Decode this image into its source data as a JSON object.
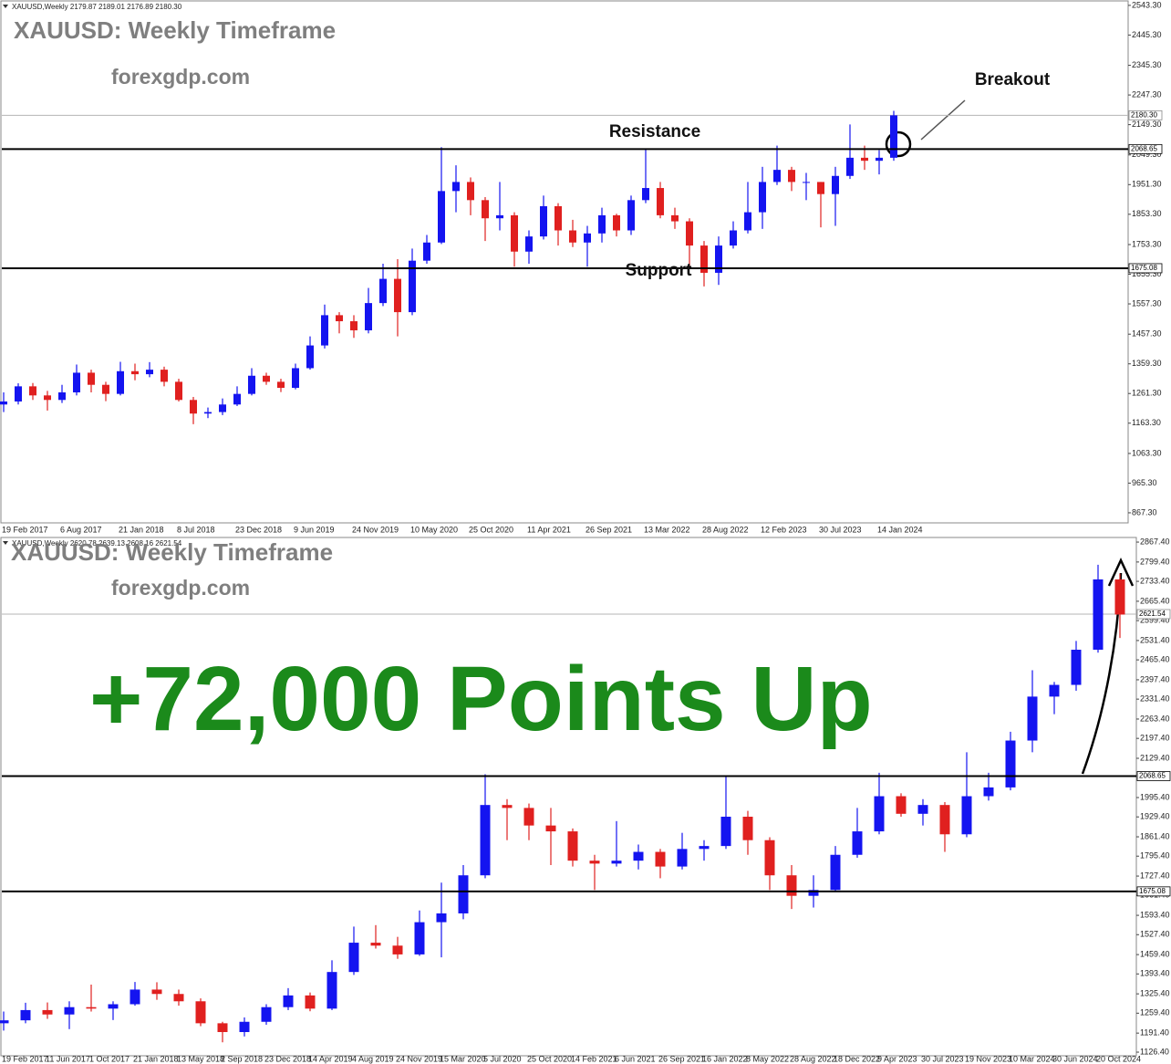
{
  "chart_data": [
    {
      "type": "candlestick",
      "header": "XAUUSD,Weekly  2179.87 2189.01 2176.89 2180.30",
      "title": "XAUUSD: Weekly Timeframe",
      "subtitle": "forexgdp.com",
      "annotations": [
        "Resistance",
        "Support",
        "Breakout"
      ],
      "up_color": "#1414f0",
      "down_color": "#e0201f",
      "categories": [
        "19 Feb 2017",
        null,
        null,
        null,
        "6 Aug 2017",
        null,
        null,
        null,
        "21 Jan 2018",
        null,
        null,
        null,
        "8 Jul 2018",
        null,
        null,
        null,
        "23 Dec 2018",
        null,
        null,
        null,
        "9 Jun 2019",
        null,
        null,
        null,
        "24 Nov 2019",
        null,
        null,
        null,
        "10 May 2020",
        null,
        null,
        null,
        "25 Oct 2020",
        null,
        null,
        null,
        "11 Apr 2021",
        null,
        null,
        null,
        "26 Sep 2021",
        null,
        null,
        null,
        "13 Mar 2022",
        null,
        null,
        null,
        "28 Aug 2022",
        null,
        null,
        null,
        "12 Feb 2023",
        null,
        null,
        null,
        "30 Jul 2023",
        null,
        null,
        null,
        "14 Jan 2024",
        null
      ],
      "ohlc": [
        [
          1225,
          1265,
          1200,
          1235
        ],
        [
          1235,
          1295,
          1225,
          1285
        ],
        [
          1285,
          1296,
          1240,
          1255
        ],
        [
          1255,
          1270,
          1205,
          1240
        ],
        [
          1240,
          1290,
          1230,
          1265
        ],
        [
          1265,
          1357,
          1255,
          1330
        ],
        [
          1330,
          1340,
          1265,
          1290
        ],
        [
          1290,
          1300,
          1236,
          1260
        ],
        [
          1260,
          1366,
          1255,
          1335
        ],
        [
          1335,
          1360,
          1305,
          1325
        ],
        [
          1325,
          1365,
          1315,
          1340
        ],
        [
          1340,
          1350,
          1285,
          1300
        ],
        [
          1300,
          1310,
          1235,
          1240
        ],
        [
          1240,
          1250,
          1160,
          1195
        ],
        [
          1195,
          1215,
          1180,
          1200
        ],
        [
          1200,
          1245,
          1190,
          1225
        ],
        [
          1225,
          1285,
          1220,
          1260
        ],
        [
          1260,
          1345,
          1255,
          1320
        ],
        [
          1320,
          1330,
          1290,
          1300
        ],
        [
          1300,
          1310,
          1266,
          1280
        ],
        [
          1280,
          1360,
          1275,
          1345
        ],
        [
          1345,
          1450,
          1340,
          1420
        ],
        [
          1420,
          1555,
          1410,
          1520
        ],
        [
          1520,
          1530,
          1460,
          1500
        ],
        [
          1500,
          1520,
          1445,
          1470
        ],
        [
          1470,
          1610,
          1460,
          1560
        ],
        [
          1560,
          1690,
          1550,
          1640
        ],
        [
          1640,
          1705,
          1450,
          1530
        ],
        [
          1530,
          1740,
          1520,
          1700
        ],
        [
          1700,
          1785,
          1690,
          1760
        ],
        [
          1760,
          2075,
          1755,
          1930
        ],
        [
          1930,
          2015,
          1860,
          1960
        ],
        [
          1960,
          1975,
          1850,
          1900
        ],
        [
          1900,
          1910,
          1765,
          1840
        ],
        [
          1840,
          1960,
          1800,
          1850
        ],
        [
          1850,
          1860,
          1680,
          1730
        ],
        [
          1730,
          1800,
          1690,
          1780
        ],
        [
          1780,
          1915,
          1770,
          1880
        ],
        [
          1880,
          1890,
          1750,
          1800
        ],
        [
          1800,
          1835,
          1745,
          1760
        ],
        [
          1760,
          1815,
          1680,
          1790
        ],
        [
          1790,
          1875,
          1760,
          1850
        ],
        [
          1850,
          1855,
          1780,
          1800
        ],
        [
          1800,
          1915,
          1785,
          1900
        ],
        [
          1900,
          2070,
          1890,
          1940
        ],
        [
          1940,
          1960,
          1840,
          1850
        ],
        [
          1850,
          1875,
          1805,
          1830
        ],
        [
          1830,
          1840,
          1680,
          1750
        ],
        [
          1750,
          1765,
          1615,
          1660
        ],
        [
          1660,
          1780,
          1620,
          1750
        ],
        [
          1750,
          1830,
          1740,
          1800
        ],
        [
          1800,
          1960,
          1790,
          1860
        ],
        [
          1860,
          2010,
          1805,
          1960
        ],
        [
          1960,
          2080,
          1950,
          2000
        ],
        [
          2000,
          2010,
          1930,
          1960
        ],
        [
          1960,
          1990,
          1900,
          1960
        ],
        [
          1960,
          1960,
          1810,
          1920
        ],
        [
          1920,
          2010,
          1815,
          1980
        ],
        [
          1980,
          2150,
          1970,
          2040
        ],
        [
          2040,
          2080,
          2000,
          2030
        ],
        [
          2030,
          2065,
          1985,
          2040
        ],
        [
          2040,
          2195,
          2030,
          2180
        ]
      ],
      "ylim": [
        834,
        2555
      ],
      "yticks": [
        {
          "value": 2543.3,
          "label": "2543.30"
        },
        {
          "value": 2445.3,
          "label": "2445.30"
        },
        {
          "value": 2345.3,
          "label": "2345.30"
        },
        {
          "value": 2247.3,
          "label": "2247.30"
        },
        {
          "value": 2149.3,
          "label": "2149.30"
        },
        {
          "value": 2049.3,
          "label": "2049.30"
        },
        {
          "value": 1951.3,
          "label": "1951.30"
        },
        {
          "value": 1853.3,
          "label": "1853.30"
        },
        {
          "value": 1753.3,
          "label": "1753.30"
        },
        {
          "value": 1655.3,
          "label": "1655.30"
        },
        {
          "value": 1557.3,
          "label": "1557.30"
        },
        {
          "value": 1457.3,
          "label": "1457.30"
        },
        {
          "value": 1359.3,
          "label": "1359.30"
        },
        {
          "value": 1261.3,
          "label": "1261.30"
        },
        {
          "value": 1163.3,
          "label": "1163.30"
        },
        {
          "value": 1063.3,
          "label": "1063.30"
        },
        {
          "value": 965.3,
          "label": "965.30"
        },
        {
          "value": 867.3,
          "label": "867.30"
        }
      ],
      "hlines": [
        {
          "value": 2068.65,
          "label": "2068.65"
        },
        {
          "value": 1675.08,
          "label": "1675.08"
        }
      ],
      "last_price": {
        "value": 2180.3,
        "label": "2180.30"
      }
    },
    {
      "type": "candlestick",
      "header": "XAUUSD,Weekly  2620.78 2639.13 2608.16 2621.54",
      "title": "XAUUSD: Weekly Timeframe",
      "subtitle": "forexgdp.com",
      "annotations": [
        "+72,000 Points Up"
      ],
      "up_color": "#1414f0",
      "down_color": "#e0201f",
      "categories": [
        "19 Feb 2017",
        null,
        "11 Jun 2017",
        null,
        "1 Oct 2017",
        null,
        "21 Jan 2018",
        null,
        "13 May 2018",
        null,
        "2 Sep 2018",
        null,
        "23 Dec 2018",
        null,
        "14 Apr 2019",
        null,
        "4 Aug 2019",
        null,
        "24 Nov 2019",
        null,
        "15 Mar 2020",
        null,
        "5 Jul 2020",
        null,
        "25 Oct 2020",
        null,
        "14 Feb 2021",
        null,
        "6 Jun 2021",
        null,
        "26 Sep 2021",
        null,
        "16 Jan 2022",
        null,
        "8 May 2022",
        null,
        "28 Aug 2022",
        null,
        "18 Dec 2022",
        null,
        "9 Apr 2023",
        null,
        "30 Jul 2023",
        null,
        "19 Nov 2023",
        null,
        "10 Mar 2024",
        null,
        "30 Jun 2024",
        null,
        "20 Oct 2024",
        null
      ],
      "ohlc": [
        [
          1225,
          1265,
          1200,
          1235
        ],
        [
          1235,
          1295,
          1225,
          1270
        ],
        [
          1270,
          1296,
          1240,
          1255
        ],
        [
          1255,
          1300,
          1205,
          1280
        ],
        [
          1280,
          1357,
          1265,
          1275
        ],
        [
          1275,
          1300,
          1236,
          1290
        ],
        [
          1290,
          1366,
          1285,
          1340
        ],
        [
          1340,
          1365,
          1305,
          1325
        ],
        [
          1325,
          1340,
          1285,
          1300
        ],
        [
          1300,
          1310,
          1215,
          1225
        ],
        [
          1225,
          1230,
          1160,
          1195
        ],
        [
          1195,
          1245,
          1180,
          1230
        ],
        [
          1230,
          1290,
          1220,
          1280
        ],
        [
          1280,
          1345,
          1270,
          1320
        ],
        [
          1320,
          1330,
          1266,
          1275
        ],
        [
          1275,
          1440,
          1270,
          1400
        ],
        [
          1400,
          1555,
          1390,
          1500
        ],
        [
          1500,
          1560,
          1480,
          1490
        ],
        [
          1490,
          1520,
          1445,
          1460
        ],
        [
          1460,
          1610,
          1455,
          1570
        ],
        [
          1570,
          1705,
          1450,
          1600
        ],
        [
          1600,
          1765,
          1580,
          1730
        ],
        [
          1730,
          2075,
          1720,
          1970
        ],
        [
          1970,
          1990,
          1850,
          1960
        ],
        [
          1960,
          1975,
          1850,
          1900
        ],
        [
          1900,
          1960,
          1765,
          1880
        ],
        [
          1880,
          1890,
          1760,
          1780
        ],
        [
          1780,
          1800,
          1680,
          1770
        ],
        [
          1770,
          1915,
          1760,
          1780
        ],
        [
          1780,
          1835,
          1750,
          1810
        ],
        [
          1810,
          1820,
          1720,
          1760
        ],
        [
          1760,
          1875,
          1750,
          1820
        ],
        [
          1820,
          1850,
          1780,
          1830
        ],
        [
          1830,
          2070,
          1820,
          1930
        ],
        [
          1930,
          1950,
          1800,
          1850
        ],
        [
          1850,
          1860,
          1680,
          1730
        ],
        [
          1730,
          1765,
          1615,
          1660
        ],
        [
          1660,
          1730,
          1620,
          1680
        ],
        [
          1680,
          1830,
          1675,
          1800
        ],
        [
          1800,
          1960,
          1790,
          1880
        ],
        [
          1880,
          2080,
          1870,
          2000
        ],
        [
          2000,
          2010,
          1930,
          1940
        ],
        [
          1940,
          1990,
          1900,
          1970
        ],
        [
          1970,
          1980,
          1810,
          1870
        ],
        [
          1870,
          2150,
          1860,
          2000
        ],
        [
          2000,
          2080,
          1985,
          2030
        ],
        [
          2030,
          2220,
          2020,
          2190
        ],
        [
          2190,
          2430,
          2150,
          2340
        ],
        [
          2340,
          2390,
          2280,
          2380
        ],
        [
          2380,
          2530,
          2360,
          2500
        ],
        [
          2500,
          2790,
          2490,
          2740
        ],
        [
          2740,
          2760,
          2540,
          2620
        ]
      ],
      "ylim": [
        1114,
        2880
      ],
      "yticks": [
        {
          "value": 2867.4,
          "label": "2867.40"
        },
        {
          "value": 2799.4,
          "label": "2799.40"
        },
        {
          "value": 2733.4,
          "label": "2733.40"
        },
        {
          "value": 2665.4,
          "label": "2665.40"
        },
        {
          "value": 2599.4,
          "label": "2599.40"
        },
        {
          "value": 2531.4,
          "label": "2531.40"
        },
        {
          "value": 2465.4,
          "label": "2465.40"
        },
        {
          "value": 2397.4,
          "label": "2397.40"
        },
        {
          "value": 2331.4,
          "label": "2331.40"
        },
        {
          "value": 2263.4,
          "label": "2263.40"
        },
        {
          "value": 2197.4,
          "label": "2197.40"
        },
        {
          "value": 2129.4,
          "label": "2129.40"
        },
        {
          "value": 1995.4,
          "label": "1995.40"
        },
        {
          "value": 1929.4,
          "label": "1929.40"
        },
        {
          "value": 1861.4,
          "label": "1861.40"
        },
        {
          "value": 1795.4,
          "label": "1795.40"
        },
        {
          "value": 1727.4,
          "label": "1727.40"
        },
        {
          "value": 1661.4,
          "label": "1661.40"
        },
        {
          "value": 1593.4,
          "label": "1593.40"
        },
        {
          "value": 1527.4,
          "label": "1527.40"
        },
        {
          "value": 1459.4,
          "label": "1459.40"
        },
        {
          "value": 1393.4,
          "label": "1393.40"
        },
        {
          "value": 1325.4,
          "label": "1325.40"
        },
        {
          "value": 1259.4,
          "label": "1259.40"
        },
        {
          "value": 1191.4,
          "label": "1191.40"
        },
        {
          "value": 1126.4,
          "label": "1126.40"
        }
      ],
      "hlines": [
        {
          "value": 2068.65,
          "label": "2068.65"
        },
        {
          "value": 1675.08,
          "label": "1675.08"
        }
      ],
      "last_price": {
        "value": 2621.54,
        "label": "2621.54"
      }
    }
  ]
}
